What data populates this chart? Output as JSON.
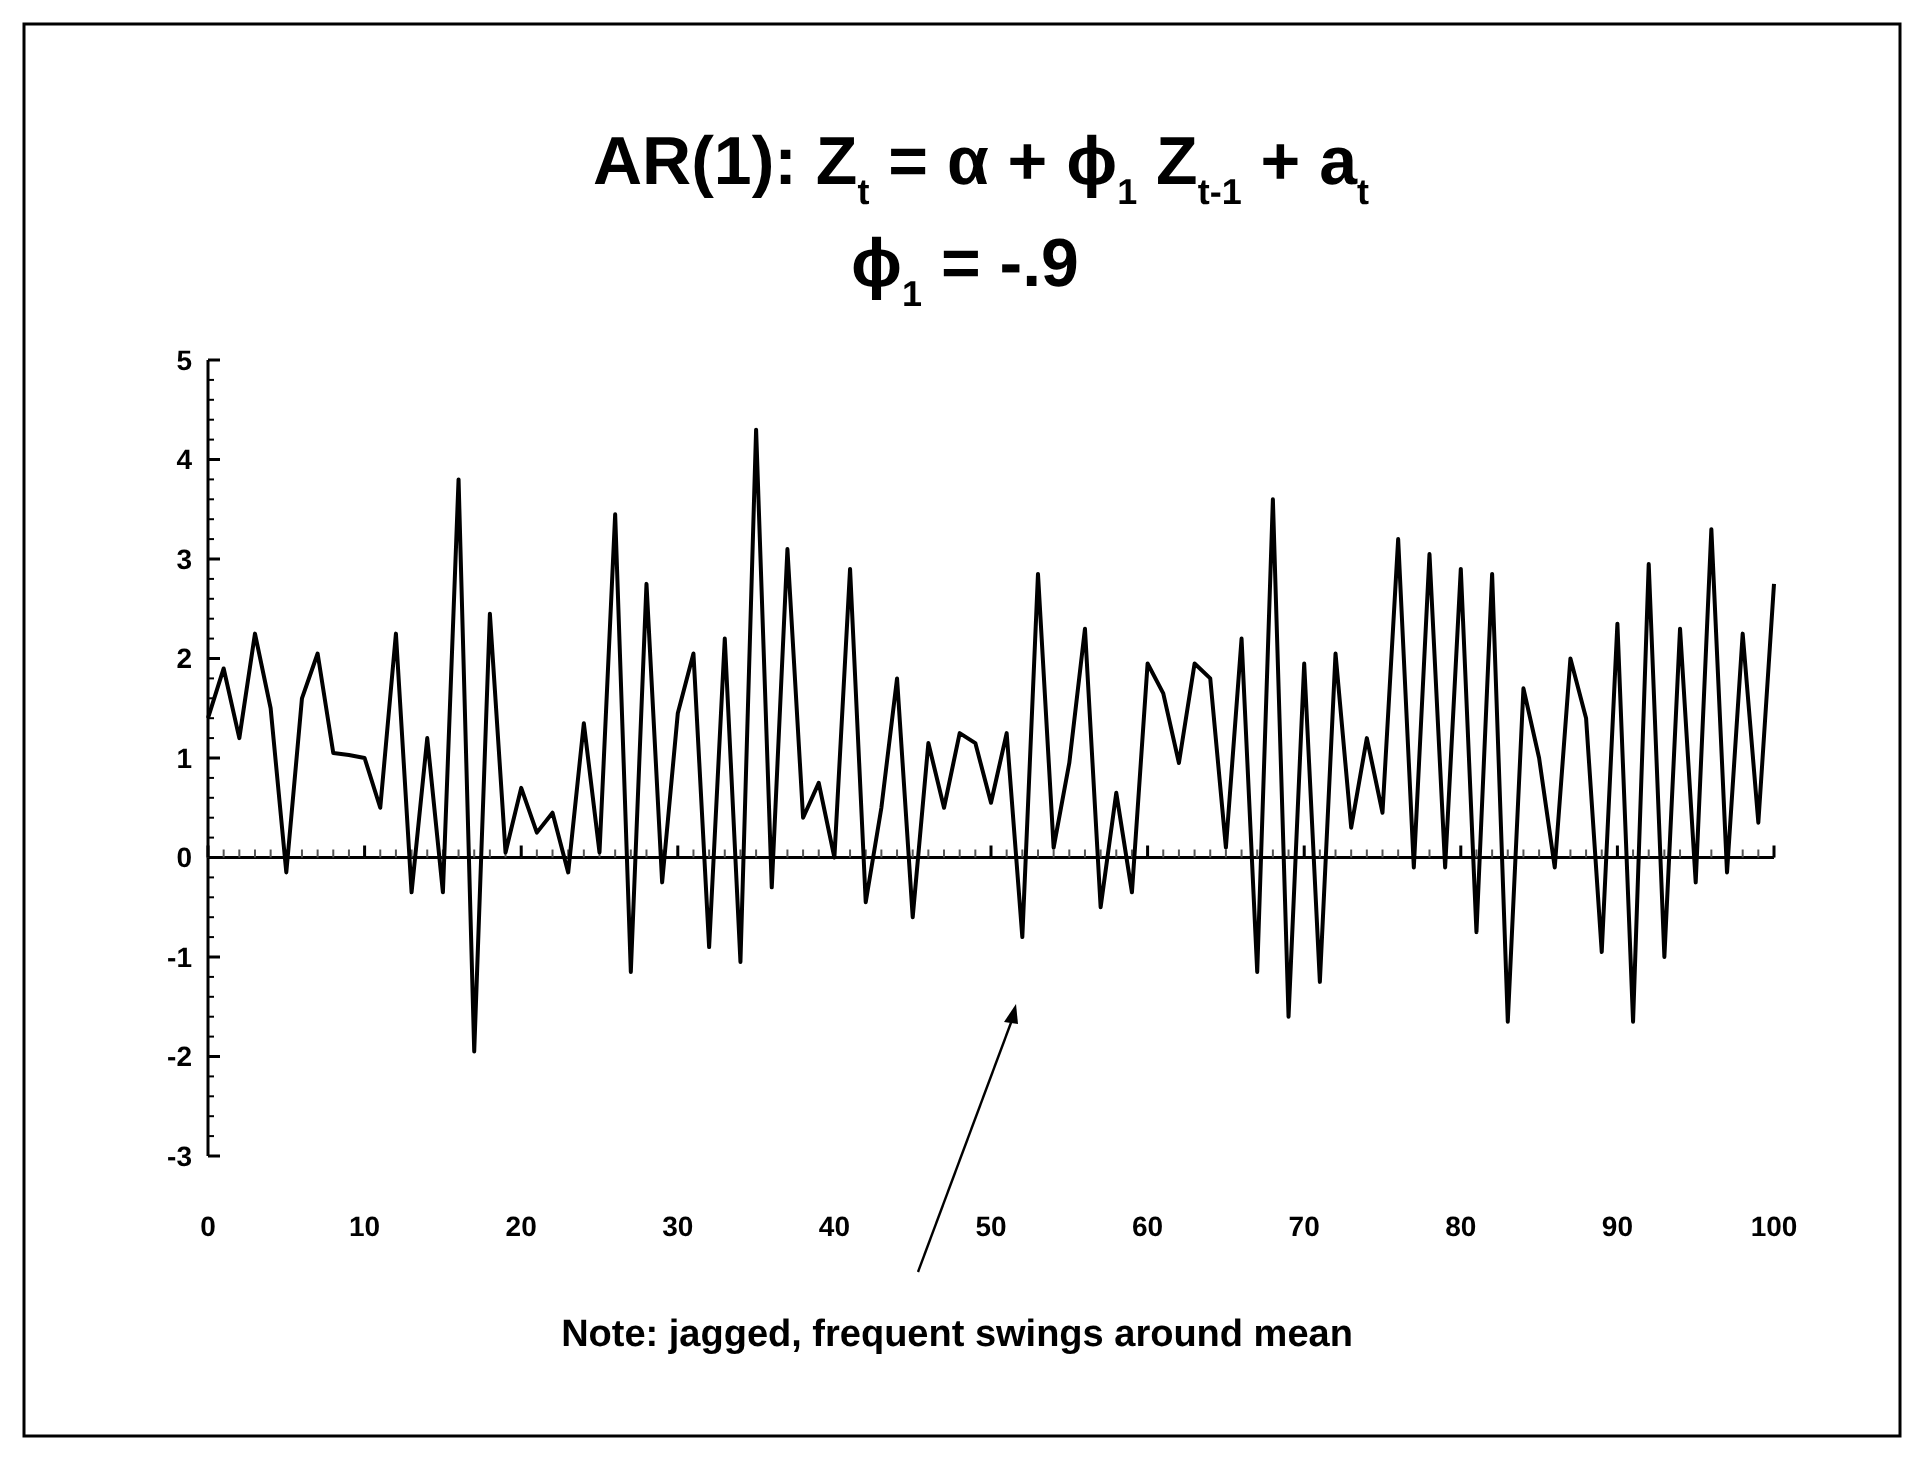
{
  "chart_data": {
    "type": "line",
    "title": "AR(1):  Z$_{t}$ = α + ϕ$_{1}$ Z$_{t-1}$ + a$_{t}$",
    "subtitle": "ϕ$_{1}$ = -.9",
    "x": [
      0,
      1,
      2,
      3,
      4,
      5,
      6,
      7,
      8,
      9,
      10,
      11,
      12,
      13,
      14,
      15,
      16,
      17,
      18,
      19,
      20,
      21,
      22,
      23,
      24,
      25,
      26,
      27,
      28,
      29,
      30,
      31,
      32,
      33,
      34,
      35,
      36,
      37,
      38,
      39,
      40,
      41,
      42,
      43,
      44,
      45,
      46,
      47,
      48,
      49,
      50,
      51,
      52,
      53,
      54,
      55,
      56,
      57,
      58,
      59,
      60,
      61,
      62,
      63,
      64,
      65,
      66,
      67,
      68,
      69,
      70,
      71,
      72,
      73,
      74,
      75,
      76,
      77,
      78,
      79,
      80,
      81,
      82,
      83,
      84,
      85,
      86,
      87,
      88,
      89,
      90,
      91,
      92,
      93,
      94,
      95,
      96,
      97,
      98,
      99,
      100
    ],
    "series": [
      {
        "color": "#000000",
        "values": [
          1.4,
          1.9,
          1.2,
          2.25,
          1.5,
          -0.15,
          1.6,
          2.05,
          1.05,
          1.03,
          1.0,
          0.5,
          2.25,
          -0.35,
          1.2,
          -0.35,
          3.8,
          -1.95,
          2.45,
          0.05,
          0.7,
          0.25,
          0.45,
          -0.15,
          1.35,
          0.05,
          3.45,
          -1.15,
          2.75,
          -0.25,
          1.45,
          2.05,
          -0.9,
          2.2,
          -1.05,
          4.3,
          -0.3,
          3.1,
          0.4,
          0.75,
          0.0,
          2.9,
          -0.45,
          0.5,
          1.8,
          -0.6,
          1.15,
          0.5,
          1.25,
          1.15,
          0.55,
          1.25,
          -0.8,
          2.85,
          0.1,
          0.95,
          2.3,
          -0.5,
          0.65,
          -0.35,
          1.95,
          1.65,
          0.95,
          1.95,
          1.8,
          0.1,
          2.2,
          -1.15,
          3.6,
          -1.6,
          1.95,
          -1.25,
          2.05,
          0.3,
          1.2,
          0.45,
          3.2,
          -0.1,
          3.05,
          -0.1,
          2.9,
          -0.75,
          2.85,
          -1.65,
          1.7,
          1.0,
          -0.1,
          2.0,
          1.4,
          -0.95,
          2.35,
          -1.65,
          2.95,
          -1.0,
          2.3,
          -0.25,
          3.3,
          -0.15,
          2.25,
          0.35,
          2.75
        ]
      }
    ],
    "xlim": [
      0,
      100
    ],
    "xticks": [
      0,
      10,
      20,
      30,
      40,
      50,
      60,
      70,
      80,
      90,
      100
    ],
    "ylim": [
      -3,
      5
    ],
    "yticks": [
      -3,
      -2,
      -1,
      0,
      1,
      2,
      3,
      4,
      5
    ],
    "annotations": [
      "Note: jagged, frequent swings around mean"
    ],
    "marker": "none",
    "line_style": "solid"
  }
}
